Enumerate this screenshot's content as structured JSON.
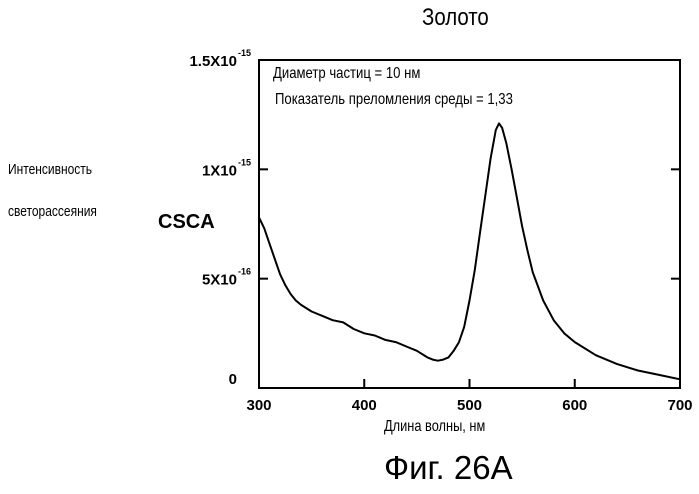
{
  "chart_data": {
    "type": "line",
    "title": "Золото",
    "xlabel": "Длина волны, нм",
    "ylabel_line1": "Интенсивность",
    "ylabel_line2": "светорассеяния",
    "ylabel_symbol": "CSCA",
    "xlim": [
      300,
      700
    ],
    "ylim": [
      0,
      1.5
    ],
    "x_ticks": [
      {
        "value": 300,
        "label": "300"
      },
      {
        "value": 400,
        "label": "400"
      },
      {
        "value": 500,
        "label": "500"
      },
      {
        "value": 600,
        "label": "600"
      },
      {
        "value": 700,
        "label": "700"
      }
    ],
    "y_ticks": [
      {
        "value": 0,
        "mant": "0",
        "exp": ""
      },
      {
        "value": 0.5,
        "mant": "5X10",
        "exp": "-16"
      },
      {
        "value": 1.0,
        "mant": "1X10",
        "exp": "-15"
      },
      {
        "value": 1.5,
        "mant": "1.5X10",
        "exp": "-15"
      }
    ],
    "y_unit_note": "y values in units of 10^-15",
    "annotations": [
      "Диаметр частиц = 10 нм",
      "Показатель преломления среды = 1,33"
    ],
    "series": [
      {
        "x": [
          300,
          305,
          310,
          315,
          320,
          325,
          330,
          335,
          340,
          350,
          360,
          370,
          380,
          390,
          400,
          410,
          420,
          430,
          440,
          450,
          460,
          465,
          470,
          475,
          480,
          485,
          490,
          495,
          500,
          505,
          510,
          515,
          520,
          525,
          528,
          531,
          535,
          540,
          545,
          550,
          555,
          560,
          570,
          580,
          590,
          600,
          620,
          640,
          660,
          680,
          700
        ],
        "y": [
          0.78,
          0.73,
          0.66,
          0.59,
          0.52,
          0.47,
          0.43,
          0.4,
          0.38,
          0.35,
          0.33,
          0.31,
          0.3,
          0.27,
          0.25,
          0.24,
          0.22,
          0.21,
          0.19,
          0.17,
          0.14,
          0.13,
          0.125,
          0.13,
          0.14,
          0.17,
          0.21,
          0.28,
          0.4,
          0.54,
          0.71,
          0.88,
          1.05,
          1.18,
          1.21,
          1.19,
          1.12,
          1.0,
          0.87,
          0.74,
          0.63,
          0.53,
          0.4,
          0.31,
          0.25,
          0.21,
          0.15,
          0.11,
          0.08,
          0.06,
          0.04
        ]
      }
    ],
    "caption": "Фиг. 26А"
  }
}
